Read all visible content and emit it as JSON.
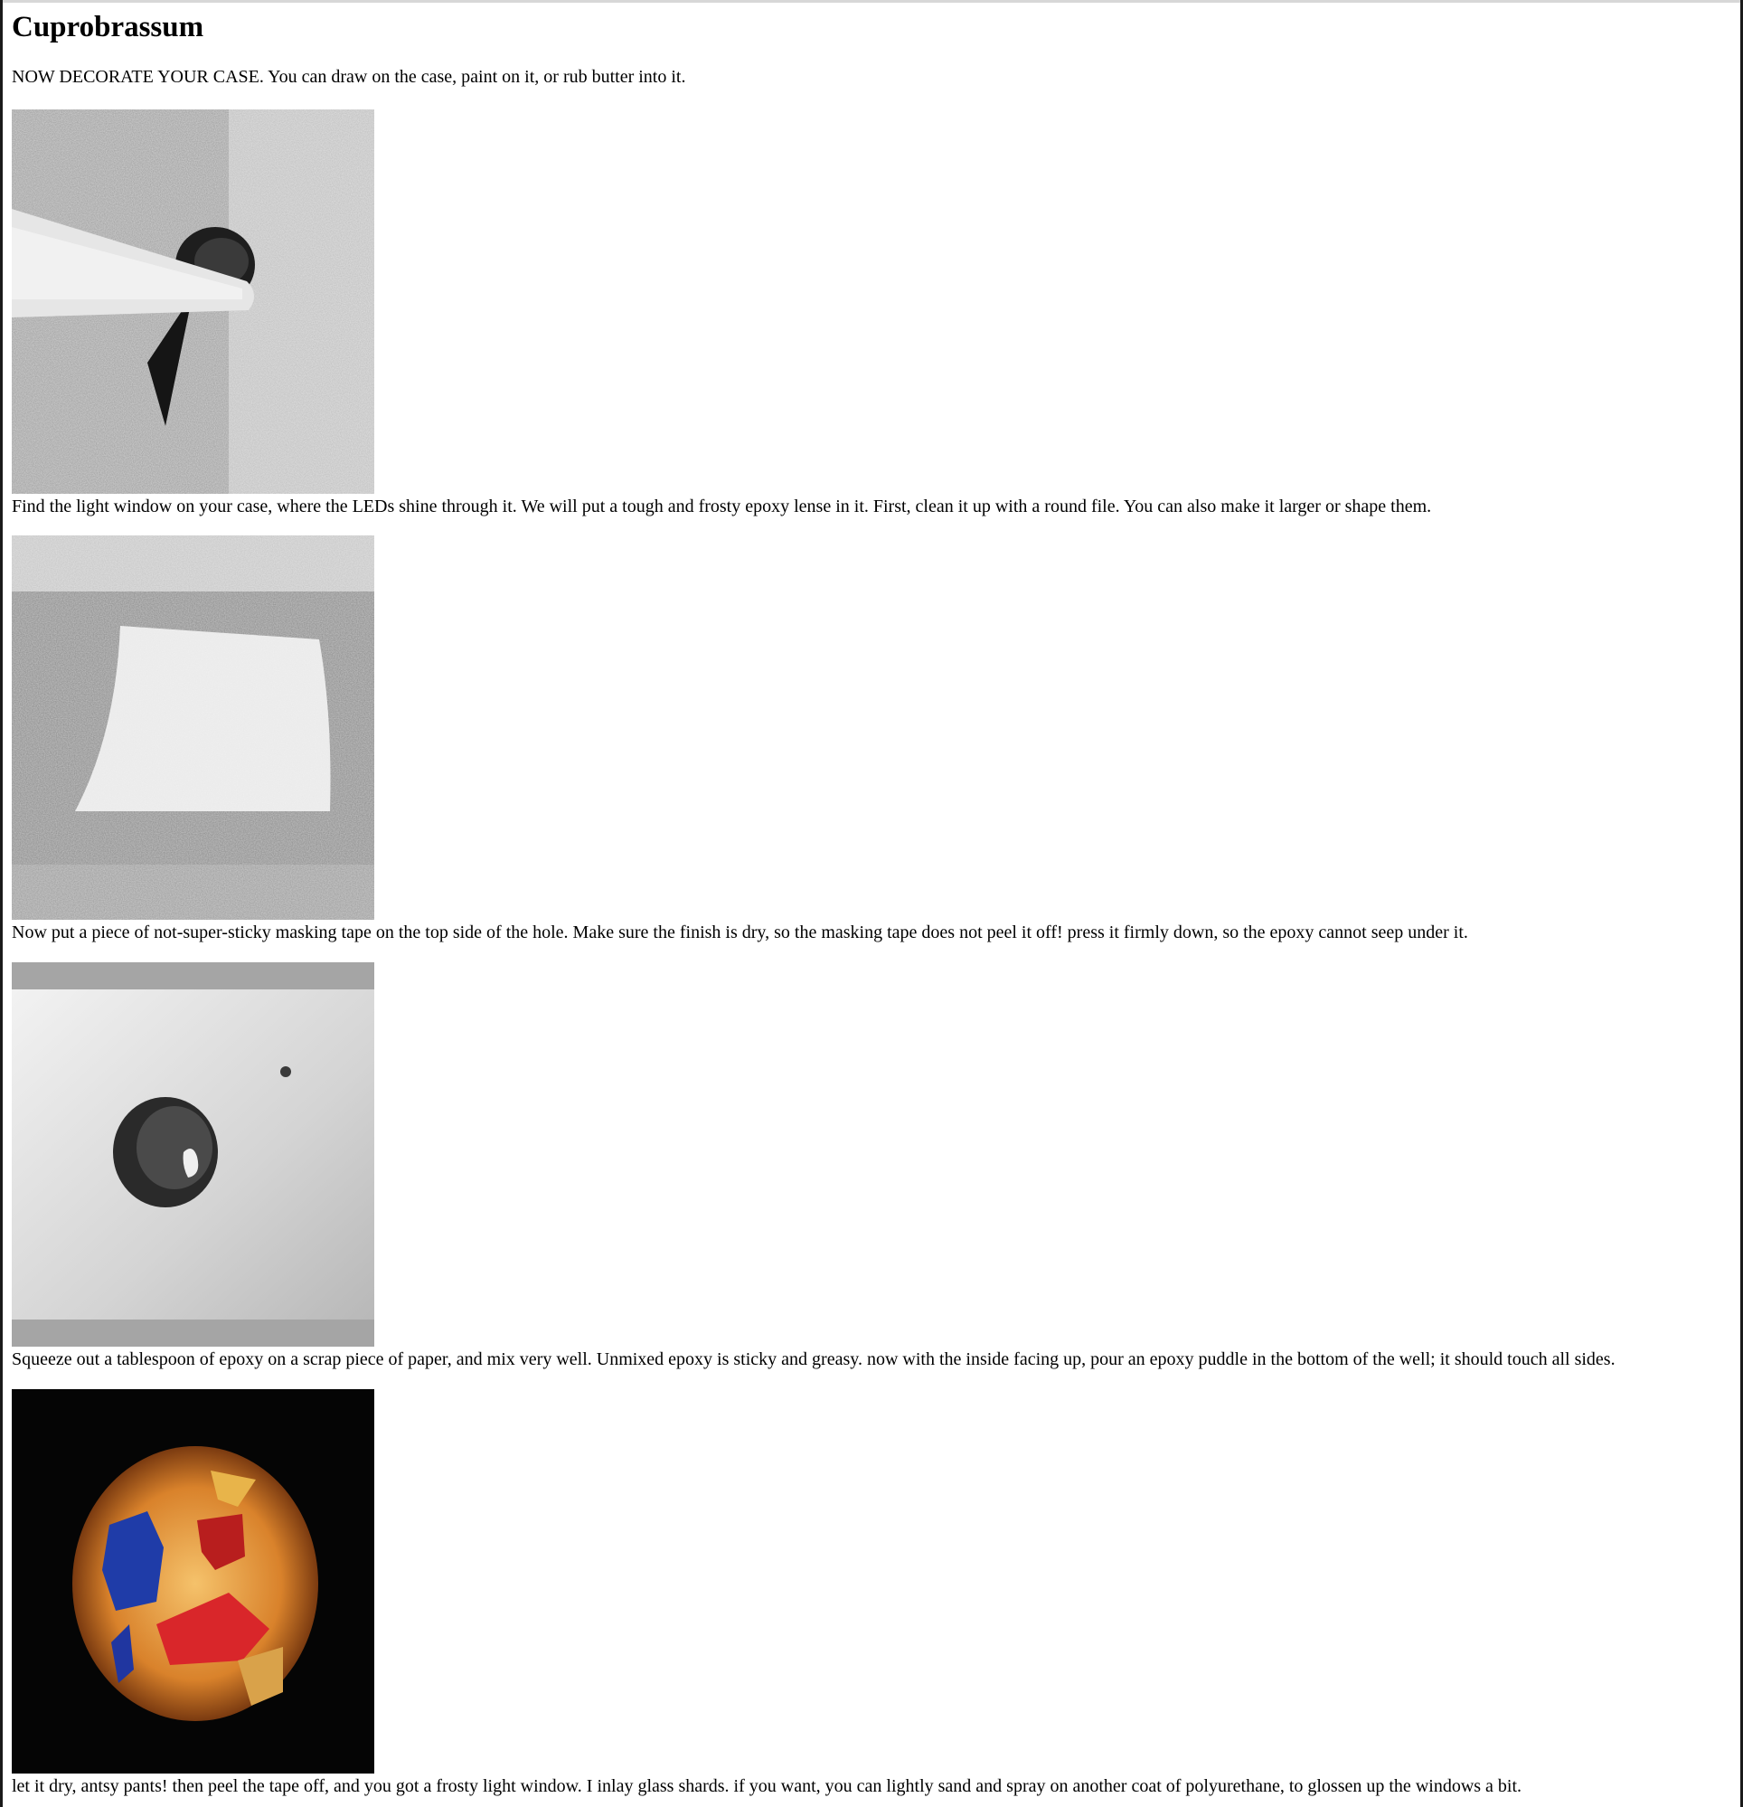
{
  "page": {
    "title": "Cuprobrassum",
    "intro": "NOW DECORATE YOUR CASE. You can draw on the case, paint on it, or rub butter into it."
  },
  "steps": [
    {
      "image": "photo-file-light-window",
      "caption": "Find the light window on your case, where the LEDs shine through it. We will put a tough and frosty epoxy lense in it. First, clean it up with a round file. You can also make it larger or shape them."
    },
    {
      "image": "photo-masking-tape",
      "caption": "Now put a piece of not-super-sticky masking tape on the top side of the hole. Make sure the finish is dry, so the masking tape does not peel it off! press it firmly down, so the epoxy cannot seep under it."
    },
    {
      "image": "photo-epoxy-puddle",
      "caption": "Squeeze out a tablespoon of epoxy on a scrap piece of paper, and mix very well. Unmixed epoxy is sticky and greasy. now with the inside facing up, pour an epoxy puddle in the bottom of the well; it should touch all sides."
    },
    {
      "image": "photo-glass-shard-window",
      "caption": "let it dry, antsy pants! then peel the tape off, and you got a frosty light window. I inlay glass shards. if you want, you can lightly sand and spray on another coat of polyurethane, to glossen up the windows a bit."
    }
  ]
}
